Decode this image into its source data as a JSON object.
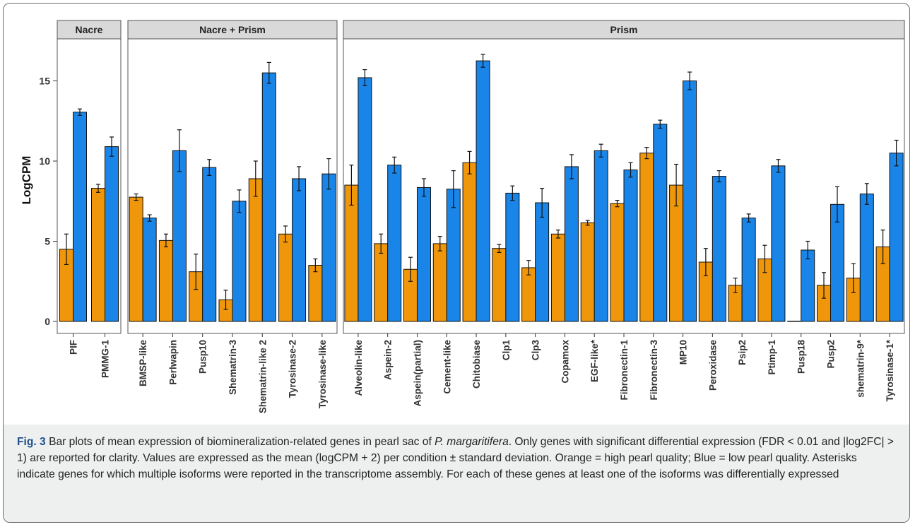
{
  "chart_data": {
    "type": "bar",
    "ylabel": "LogCPM",
    "ylim": [
      0,
      17.5
    ],
    "yticks": [
      0,
      5,
      10,
      15
    ],
    "grid": false,
    "colors": {
      "high_quality": "#F0960A",
      "low_quality": "#1A85E8"
    },
    "panels": [
      {
        "title": "Nacre",
        "categories": [
          "PIF",
          "PMMG-1"
        ],
        "orange": [
          4.5,
          8.3
        ],
        "orange_err": [
          0.95,
          0.25
        ],
        "blue": [
          13.05,
          10.9
        ],
        "blue_err": [
          0.2,
          0.6
        ]
      },
      {
        "title": "Nacre + Prism",
        "categories": [
          "BMSP-like",
          "Perlwapin",
          "Pusp10",
          "Shematrin-3",
          "Shematrin-like 2",
          "Tyrosinase-2",
          "Tyrosinase-like"
        ],
        "orange": [
          7.75,
          5.05,
          3.1,
          1.35,
          8.9,
          5.45,
          3.5
        ],
        "orange_err": [
          0.2,
          0.4,
          1.1,
          0.6,
          1.1,
          0.5,
          0.4
        ],
        "blue": [
          6.45,
          10.65,
          9.6,
          7.5,
          15.5,
          8.9,
          9.2
        ],
        "blue_err": [
          0.2,
          1.3,
          0.5,
          0.7,
          0.65,
          0.75,
          0.95
        ]
      },
      {
        "title": "Prism",
        "categories": [
          "Alveolin-like",
          "Aspein-2",
          "Aspein(partial)",
          "Cement-like",
          "Chitobiase",
          "Clp1",
          "Clp3",
          "Copamox",
          "EGF-like*",
          "Fibronectin-1",
          "Fibronectin-3",
          "MP10",
          "Peroxidase",
          "Psip2",
          "Ptimp-1",
          "Pusp18",
          "Pusp2",
          "shematrin-9*",
          "Tyrosinase-1*"
        ],
        "orange": [
          8.5,
          4.85,
          3.25,
          4.85,
          9.9,
          4.55,
          3.35,
          5.45,
          6.15,
          7.35,
          10.5,
          8.5,
          3.7,
          2.25,
          3.9,
          0.0,
          2.25,
          2.7,
          4.65
        ],
        "orange_err": [
          1.25,
          0.6,
          0.75,
          0.45,
          0.7,
          0.25,
          0.45,
          0.25,
          0.15,
          0.2,
          0.35,
          1.3,
          0.85,
          0.45,
          0.85,
          0.0,
          0.8,
          0.9,
          1.05
        ],
        "blue": [
          15.2,
          9.75,
          8.35,
          8.25,
          16.25,
          8.0,
          7.4,
          9.65,
          10.65,
          9.45,
          12.3,
          15.0,
          9.05,
          6.45,
          9.7,
          4.45,
          7.3,
          7.95,
          10.5
        ],
        "blue_err": [
          0.5,
          0.5,
          0.55,
          1.15,
          0.4,
          0.45,
          0.9,
          0.75,
          0.4,
          0.45,
          0.25,
          0.55,
          0.35,
          0.25,
          0.4,
          0.55,
          1.1,
          0.65,
          0.8
        ]
      }
    ]
  },
  "caption": {
    "fig_label": "Fig. 3",
    "part1": " Bar plots of mean expression of biomineralization-related genes in pearl sac of ",
    "species": "P. margaritifera",
    "part2": ". Only genes with significant differential expression (FDR < 0.01 and |log2FC| > 1) are reported for clarity. Values are expressed as the mean (logCPM + 2) per condition ± standard deviation. Orange = high pearl quality; Blue = low pearl quality. Asterisks indicate genes for which multiple isoforms were reported in the transcriptome assembly. For each of these genes at least one of the isoforms was differentially expressed"
  }
}
